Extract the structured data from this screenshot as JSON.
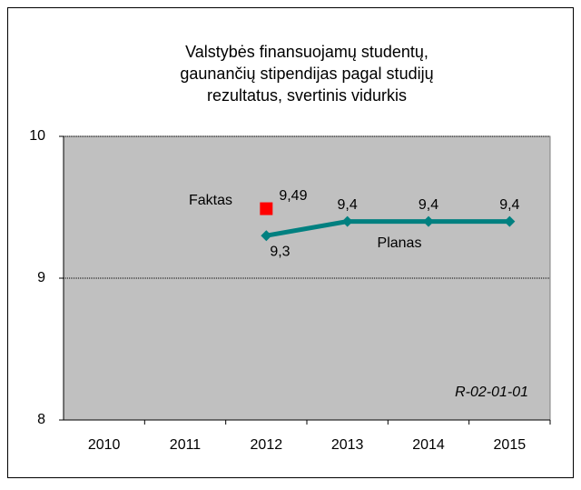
{
  "chart_data": {
    "type": "line",
    "title": [
      "Valstybės finansuojamų studentų,",
      "gaunančių stipendijas pagal studijų",
      "rezultatus, svertinis vidurkis"
    ],
    "categories": [
      "2010",
      "2011",
      "2012",
      "2013",
      "2014",
      "2015"
    ],
    "series": [
      {
        "name": "Planas",
        "color": "#008080",
        "marker": "diamond",
        "values": [
          null,
          null,
          9.3,
          9.4,
          9.4,
          9.4
        ],
        "value_labels": [
          null,
          null,
          "9,3",
          "9,4",
          "9,4",
          "9,4"
        ]
      },
      {
        "name": "Faktas",
        "color": "#ff0000",
        "marker": "square",
        "values": [
          null,
          null,
          9.49,
          null,
          null,
          null
        ],
        "value_labels": [
          null,
          null,
          "9,49",
          null,
          null,
          null
        ]
      }
    ],
    "ylim": [
      8,
      10
    ],
    "yticks": [
      8,
      9,
      10
    ],
    "grid": true,
    "annotation": "R-02-01-01"
  }
}
